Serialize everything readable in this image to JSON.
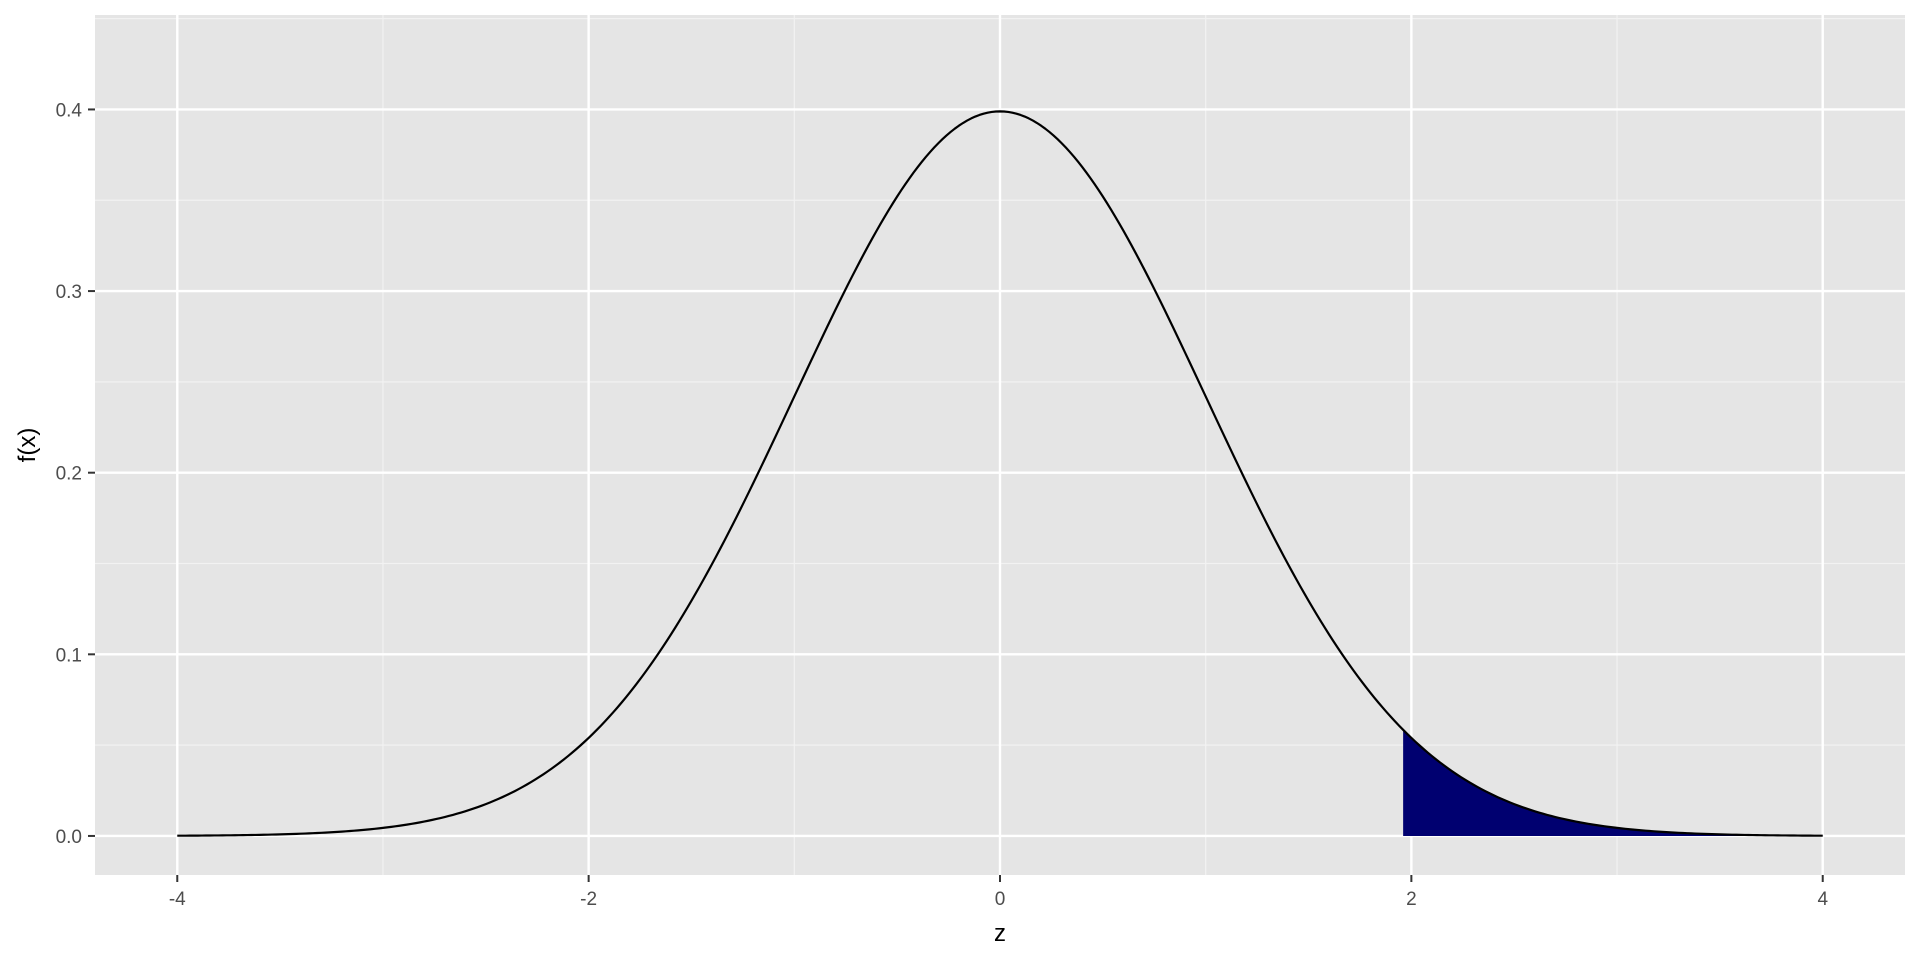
{
  "chart_data": {
    "type": "area",
    "title": "",
    "xlabel": "z",
    "ylabel": "f(x)",
    "xlim": [
      -4.4,
      4.4
    ],
    "ylim": [
      -0.0215,
      0.452
    ],
    "x_ticks": [
      -4,
      -2,
      0,
      2,
      4
    ],
    "x_tick_labels": [
      "-4",
      "-2",
      "0",
      "2",
      "4"
    ],
    "y_ticks": [
      0.0,
      0.1,
      0.2,
      0.3,
      0.4
    ],
    "y_tick_labels": [
      "0.0",
      "0.1",
      "0.2",
      "0.3",
      "0.4"
    ],
    "grid": true,
    "series": [
      {
        "role": "density-curve",
        "x": [
          -4,
          -3.5,
          -3,
          -2.75,
          -2.5,
          -2.25,
          -2,
          -1.75,
          -1.5,
          -1.25,
          -1,
          -0.75,
          -0.5,
          -0.25,
          0,
          0.25,
          0.5,
          0.75,
          1,
          1.25,
          1.5,
          1.75,
          1.96,
          2,
          2.25,
          2.5,
          2.75,
          3,
          3.5,
          4
        ],
        "y": [
          0.0001,
          0.0009,
          0.0044,
          0.0091,
          0.0175,
          0.0317,
          0.054,
          0.0863,
          0.1295,
          0.1826,
          0.242,
          0.3011,
          0.3521,
          0.3867,
          0.3989,
          0.3867,
          0.3521,
          0.3011,
          0.242,
          0.1826,
          0.1295,
          0.0863,
          0.0584,
          0.054,
          0.0317,
          0.0175,
          0.0091,
          0.0044,
          0.0009,
          0.0001
        ]
      },
      {
        "role": "shaded-tail",
        "x_from": 1.96,
        "x_to": 4,
        "x": [
          1.96,
          2,
          2.25,
          2.5,
          2.75,
          3,
          3.5,
          4
        ],
        "y": [
          0.0584,
          0.054,
          0.0317,
          0.0175,
          0.0091,
          0.0044,
          0.0009,
          0.0001
        ]
      }
    ],
    "colors": {
      "panel_background": "#e5e5e5",
      "grid_major": "#ffffff",
      "grid_minor": "#f2f2f2",
      "curve": "#000000",
      "shaded_fill": "#000070"
    }
  }
}
